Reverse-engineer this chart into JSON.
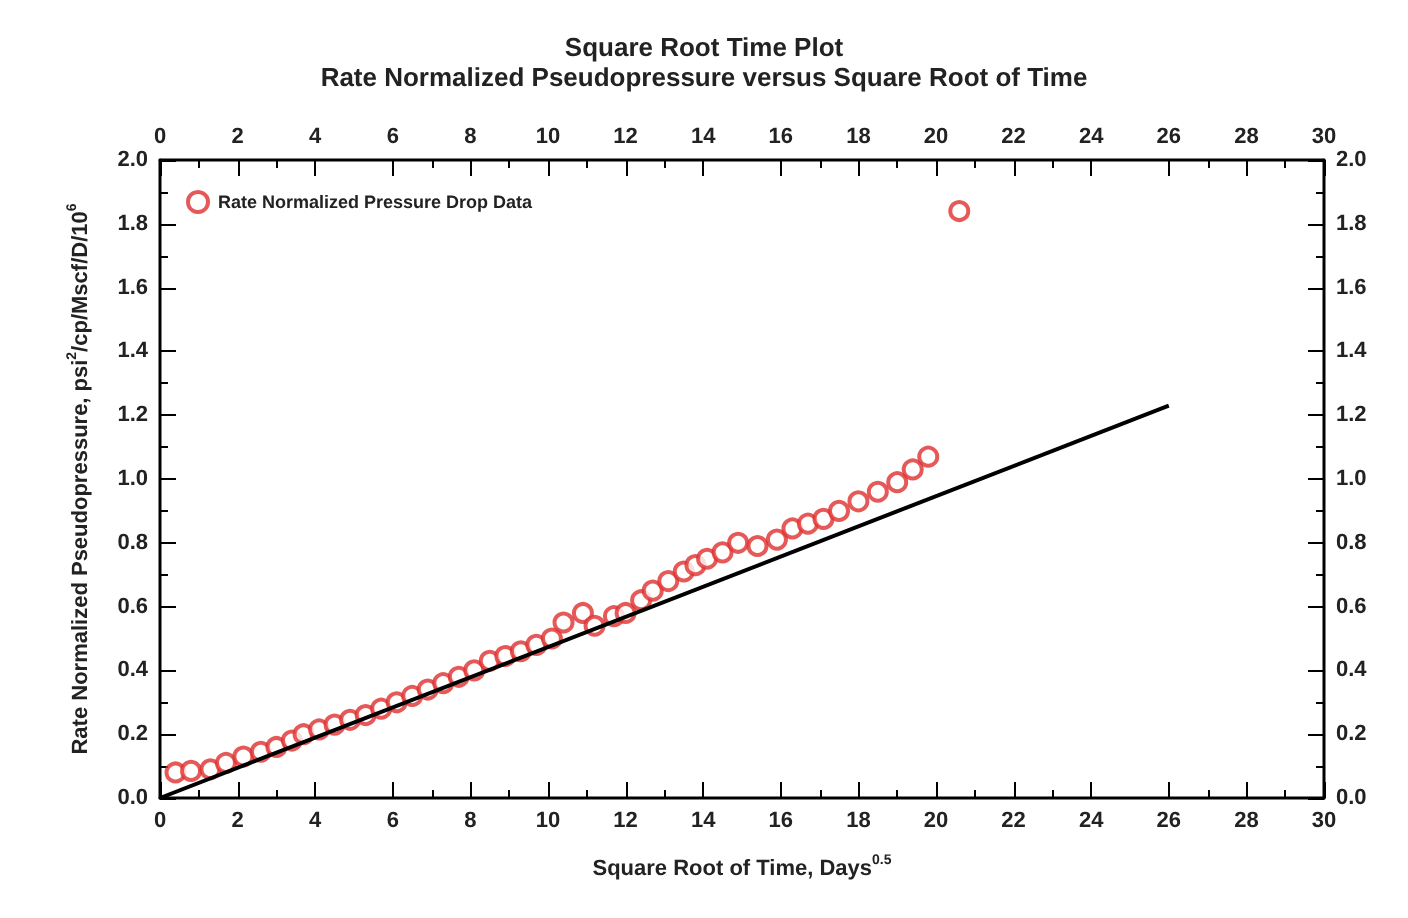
{
  "chart_data": {
    "type": "scatter",
    "title": "Square Root Time Plot",
    "subtitle": "Rate Normalized Pseudopressure versus Square Root of Time",
    "xlabel": "Square Root of Time, Days$^{0.5}$",
    "ylabel": "Rate Normalized Pseudopressure, psi$^{2}$/cp/Mscf/D/10$^{6}$",
    "xlim": [
      0,
      30
    ],
    "xticks": [
      0,
      2,
      4,
      6,
      8,
      10,
      12,
      14,
      16,
      18,
      20,
      22,
      24,
      26,
      28,
      30
    ],
    "x2lim": [
      0,
      30
    ],
    "x2ticks": [
      0,
      2,
      4,
      6,
      8,
      10,
      12,
      14,
      16,
      18,
      20,
      22,
      24,
      26,
      28,
      30
    ],
    "ylim": [
      0,
      2.0
    ],
    "yticks": [
      {
        "value": 0,
        "label": "0.0"
      },
      0.2,
      0.4,
      0.6,
      0.8,
      {
        "value": 1,
        "label": "1.0"
      },
      1.2,
      1.4,
      1.6,
      1.8,
      {
        "value": 2,
        "label": "2.0"
      }
    ],
    "y2lim": [
      0,
      2.0
    ],
    "y2ticks": [
      {
        "value": 0,
        "label": "0.0"
      },
      0.2,
      0.4,
      0.6,
      0.8,
      {
        "value": 1,
        "label": "1.0"
      },
      1.2,
      1.4,
      1.6,
      1.8,
      {
        "value": 2,
        "label": "2.0"
      }
    ],
    "grid": false,
    "legend": "top left",
    "marker": "circle",
    "series": [
      {
        "name": "Rate Normalized Pressure Drop Data",
        "color": "#e03030",
        "x": [
          0.4,
          0.8,
          1.3,
          1.7,
          2.15,
          2.6,
          3.0,
          3.4,
          3.7,
          4.1,
          4.5,
          4.9,
          5.3,
          5.7,
          6.1,
          6.5,
          6.9,
          7.3,
          7.7,
          8.1,
          8.5,
          8.9,
          9.3,
          9.7,
          10.1,
          10.4,
          10.9,
          11.2,
          11.7,
          12.0,
          12.4,
          12.7,
          13.1,
          13.5,
          13.8,
          14.1,
          14.5,
          14.9,
          15.4,
          15.9,
          16.3,
          16.7,
          17.1,
          17.5,
          18.0,
          18.5,
          19.0,
          19.4,
          19.8,
          20.6
        ],
        "values": [
          0.08,
          0.085,
          0.09,
          0.11,
          0.13,
          0.145,
          0.16,
          0.18,
          0.2,
          0.215,
          0.23,
          0.245,
          0.26,
          0.28,
          0.3,
          0.32,
          0.34,
          0.36,
          0.38,
          0.4,
          0.43,
          0.445,
          0.46,
          0.48,
          0.5,
          0.55,
          0.58,
          0.54,
          0.57,
          0.58,
          0.62,
          0.65,
          0.68,
          0.71,
          0.73,
          0.75,
          0.77,
          0.8,
          0.79,
          0.81,
          0.845,
          0.86,
          0.875,
          0.9,
          0.93,
          0.96,
          0.99,
          1.03,
          1.07,
          1.84
        ]
      },
      {
        "type": "line",
        "color": "#000000",
        "marker": "none",
        "x": [
          0,
          26
        ],
        "values": [
          0,
          1.23
        ]
      }
    ]
  }
}
